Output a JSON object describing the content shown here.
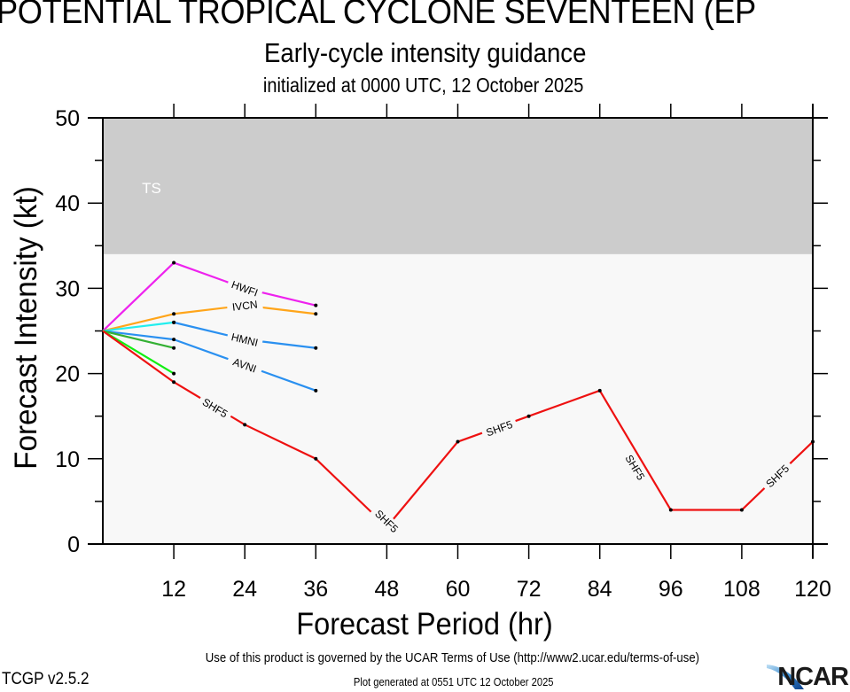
{
  "chart_data": {
    "type": "line",
    "title": "POTENTIAL TROPICAL CYCLONE SEVENTEEN (EP",
    "subtitle": "Early-cycle intensity guidance",
    "subtitle2": "initialized at 0000 UTC, 12 October 2025",
    "xlabel": "Forecast Period (hr)",
    "ylabel": "Forecast Intensity (kt)",
    "xlim": [
      0,
      120
    ],
    "ylim": [
      0,
      50
    ],
    "x_ticks": [
      12,
      24,
      36,
      48,
      60,
      72,
      84,
      96,
      108,
      120
    ],
    "y_ticks": [
      0,
      10,
      20,
      30,
      40,
      50
    ],
    "grid": false,
    "legend": "none (inline line labels)",
    "bands": [
      {
        "name": "TS",
        "from": 34,
        "to": 50,
        "color": "#cccccc",
        "label_color": "#ffffff"
      },
      {
        "name": "below-TS",
        "from": 0,
        "to": 34,
        "color": "#f8f8f8"
      }
    ],
    "series": [
      {
        "name": "HWFI",
        "color": "#ee22ee",
        "label": "HWFI",
        "label_at": 24,
        "x": [
          0,
          12,
          24,
          36
        ],
        "values": [
          25,
          33,
          30,
          28
        ]
      },
      {
        "name": "IVCN",
        "color": "#ffa51a",
        "label": "IVCN",
        "label_at": 24,
        "x": [
          0,
          12,
          24,
          36
        ],
        "values": [
          25,
          27,
          28,
          27
        ]
      },
      {
        "name": "unlabeled-cyan",
        "color": "#22eeee",
        "label": "",
        "x": [
          0,
          12
        ],
        "values": [
          25,
          26
        ]
      },
      {
        "name": "HMNI",
        "color": "#2a90f0",
        "label": "HMNI",
        "label_at": 24,
        "x": [
          12,
          24,
          36
        ],
        "values": [
          26,
          24,
          23
        ]
      },
      {
        "name": "AVNI",
        "color": "#2a90f0",
        "label": "AVNI",
        "label_at": 24,
        "x": [
          0,
          12,
          24,
          36
        ],
        "values": [
          25,
          24,
          21,
          18
        ]
      },
      {
        "name": "unlabeled-darkgreen",
        "color": "#33b033",
        "label": "",
        "x": [
          0,
          12
        ],
        "values": [
          25,
          23
        ]
      },
      {
        "name": "unlabeled-green",
        "color": "#11ee11",
        "label": "",
        "x": [
          0,
          12
        ],
        "values": [
          25,
          20
        ]
      },
      {
        "name": "SHF5",
        "color": "#ee1111",
        "label": "SHF5",
        "label_positions": [
          [
            19,
            16
          ],
          [
            48,
            2.7
          ],
          [
            67,
            13.6
          ],
          [
            90,
            9
          ],
          [
            114,
            8
          ]
        ],
        "x": [
          0,
          12,
          24,
          36,
          48,
          60,
          72,
          84,
          96,
          108,
          120
        ],
        "values": [
          25,
          19,
          14,
          10,
          2,
          12,
          15,
          18,
          4,
          4,
          12
        ]
      }
    ]
  },
  "footer": {
    "terms": "Use of this product is governed by the UCAR Terms of Use (http://www2.ucar.edu/terms-of-use)",
    "version": "TCGP v2.5.2",
    "generated": "Plot generated at 0551 UTC   12 October 2025",
    "logo_text": "NCAR"
  }
}
